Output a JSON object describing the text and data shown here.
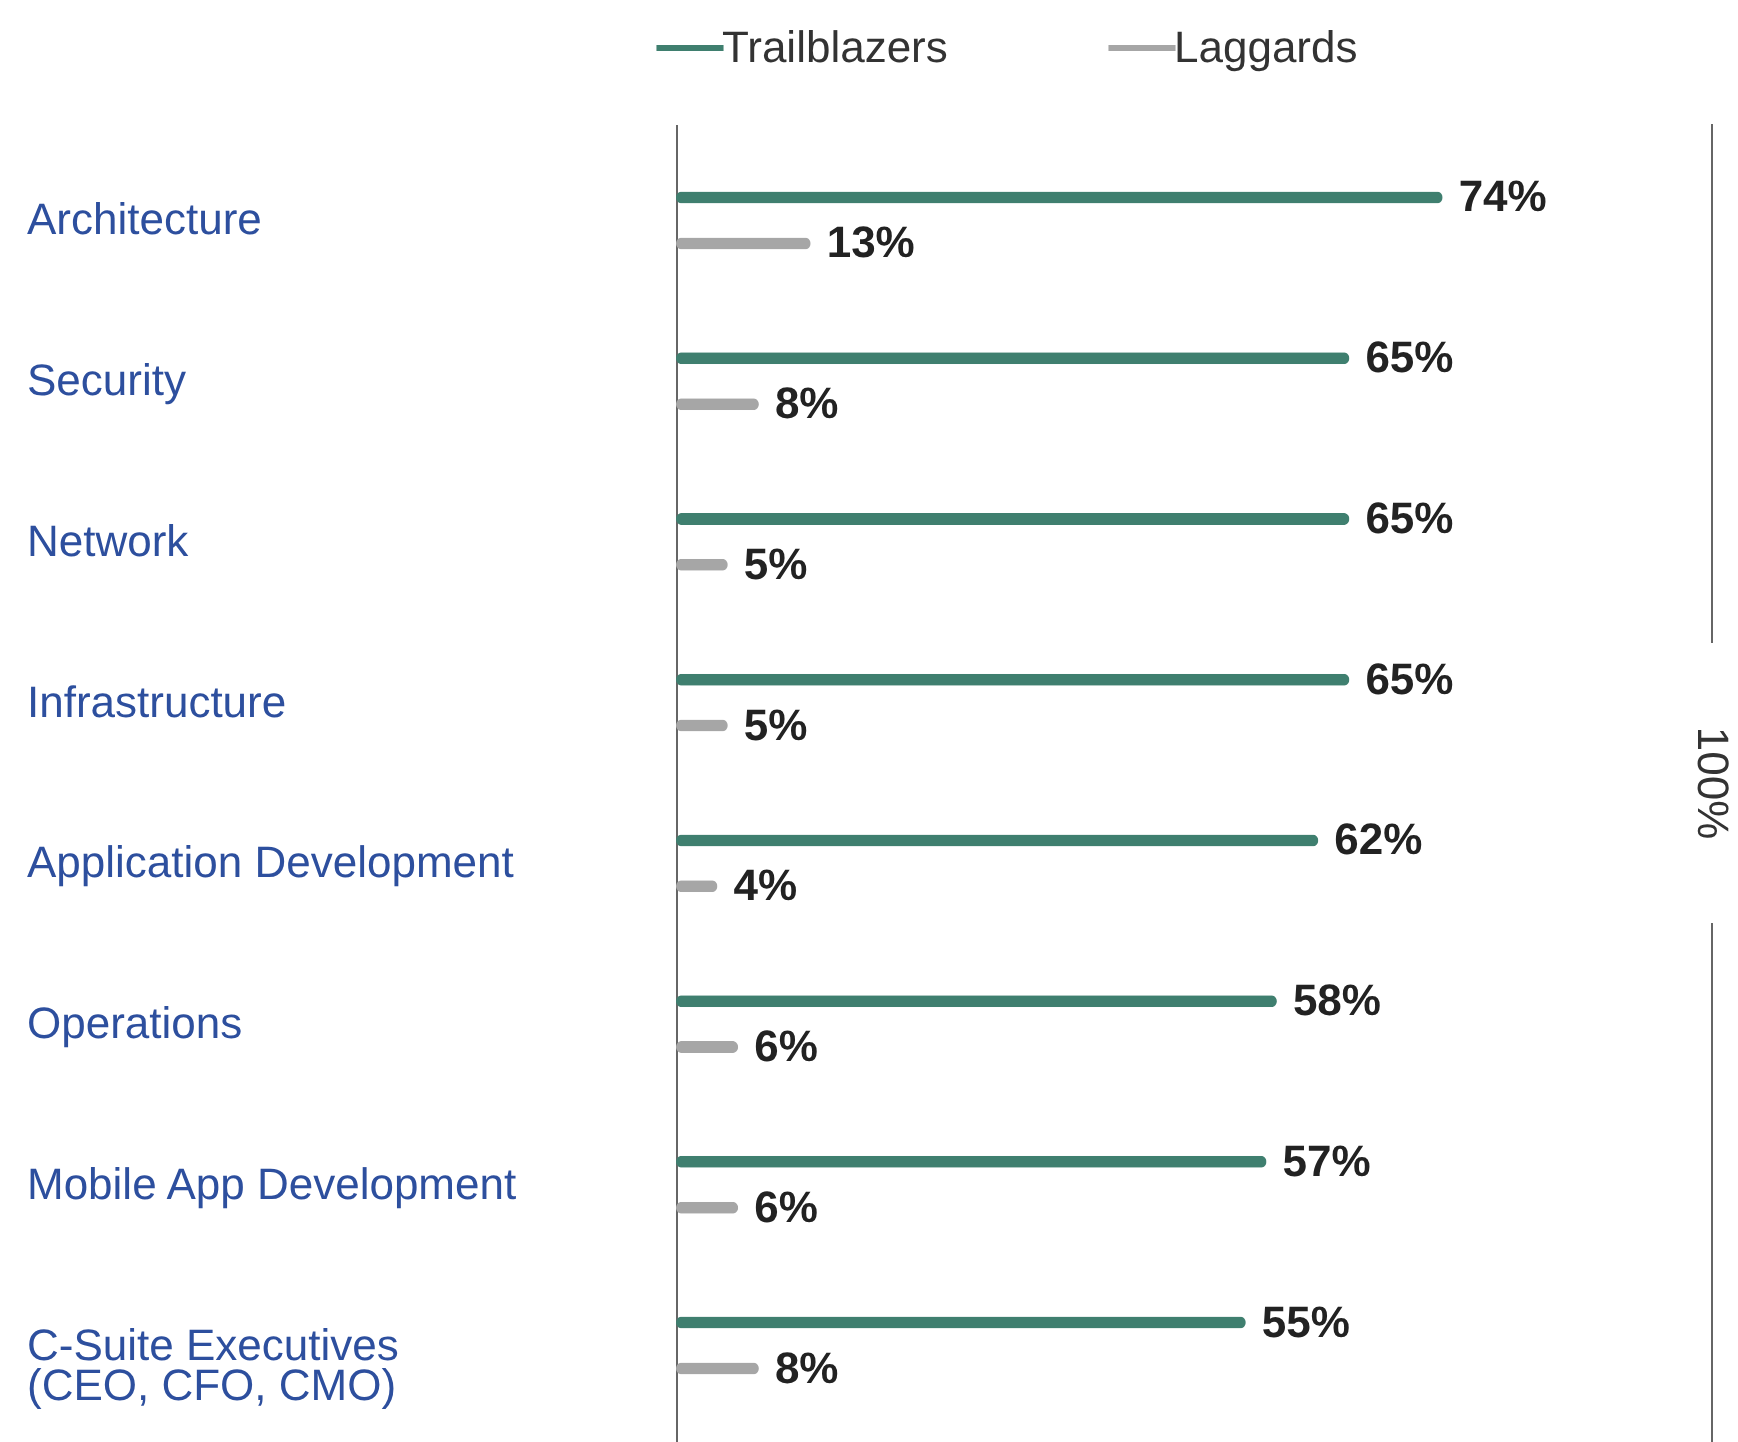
{
  "chart_data": {
    "type": "bar",
    "orientation": "horizontal",
    "categories": [
      "Architecture",
      "Security",
      "Network",
      "Infrastructure",
      "Application Development",
      "Operations",
      "Mobile App Development",
      "C-Suite Executives\n(CEO, CFO, CMO)"
    ],
    "series": [
      {
        "name": "Trailblazers",
        "color": "#3f7f6f",
        "values": [
          74,
          65,
          65,
          65,
          62,
          58,
          57,
          55
        ],
        "value_labels": [
          "74%",
          "65%",
          "65%",
          "65%",
          "62%",
          "58%",
          "57%",
          "55%"
        ]
      },
      {
        "name": "Laggards",
        "color": "#a6a6a6",
        "values": [
          13,
          8,
          5,
          5,
          4,
          6,
          6,
          8
        ],
        "value_labels": [
          "13%",
          "8%",
          "5%",
          "5%",
          "4%",
          "6%",
          "6%",
          "8%"
        ]
      }
    ],
    "ref_lines": [
      {
        "axis": "x",
        "value": 100,
        "label": "100%"
      }
    ],
    "legend": "top",
    "tick_labels": "y"
  }
}
